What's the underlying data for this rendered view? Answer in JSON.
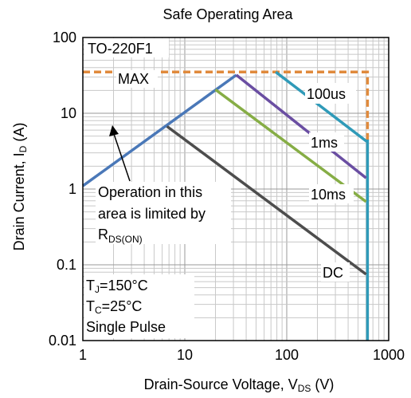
{
  "chart_data": {
    "type": "line",
    "title": "Safe Operating Area",
    "xlabel_main": "Drain-Source Voltage, V",
    "xlabel_sub": "DS",
    "xlabel_tail": " (V)",
    "ylabel_main": "Drain Current, I",
    "ylabel_sub": "D",
    "ylabel_tail": " (A)",
    "xscale": "log",
    "yscale": "log",
    "xlim": [
      1,
      1000
    ],
    "ylim": [
      0.01,
      100
    ],
    "grid": true,
    "x_ticks": [
      {
        "value": 1,
        "label": "1"
      },
      {
        "value": 10,
        "label": "10"
      },
      {
        "value": 100,
        "label": "100"
      },
      {
        "value": 1000,
        "label": "1000"
      }
    ],
    "y_ticks": [
      {
        "value": 0.01,
        "label": "0.01"
      },
      {
        "value": 0.1,
        "label": "0.1"
      },
      {
        "value": 1,
        "label": "1"
      },
      {
        "value": 10,
        "label": "10"
      },
      {
        "value": 100,
        "label": "100"
      }
    ],
    "series": [
      {
        "name": "MAX",
        "color": "#e08a3c",
        "dashed": true,
        "points": [
          [
            1,
            35
          ],
          [
            620,
            35
          ],
          [
            620,
            4
          ]
        ]
      },
      {
        "name": "RDS(ON) limit",
        "color": "#4a78b8",
        "points": [
          [
            1,
            1.1
          ],
          [
            32,
            32
          ]
        ]
      },
      {
        "name": "100us",
        "color": "#2f9ab8",
        "points": [
          [
            78,
            35
          ],
          [
            600,
            4.3
          ],
          [
            620,
            4.3
          ],
          [
            620,
            0.01
          ]
        ]
      },
      {
        "name": "1ms",
        "color": "#6a4ea2",
        "points": [
          [
            32,
            32
          ],
          [
            600,
            1.4
          ]
        ]
      },
      {
        "name": "10ms",
        "color": "#86ad45",
        "points": [
          [
            20,
            20.5
          ],
          [
            600,
            0.68
          ]
        ]
      },
      {
        "name": "DC",
        "color": "#4d4d4d",
        "points": [
          [
            6.7,
            6.7
          ],
          [
            600,
            0.075
          ]
        ]
      }
    ],
    "labels": {
      "package": "TO-220F1",
      "max": "MAX",
      "l100us": "100us",
      "l1ms": "1ms",
      "l10ms": "10ms",
      "dc": "DC",
      "note_line1": "Operation in this",
      "note_line2": "area is limited by",
      "note_r": "R",
      "note_sub": "DS(ON)",
      "cond1_a": "T",
      "cond1_sub": "J",
      "cond1_b": "=150°C",
      "cond2_a": "T",
      "cond2_sub": "C",
      "cond2_b": "=25°C",
      "cond3": "Single Pulse"
    }
  }
}
